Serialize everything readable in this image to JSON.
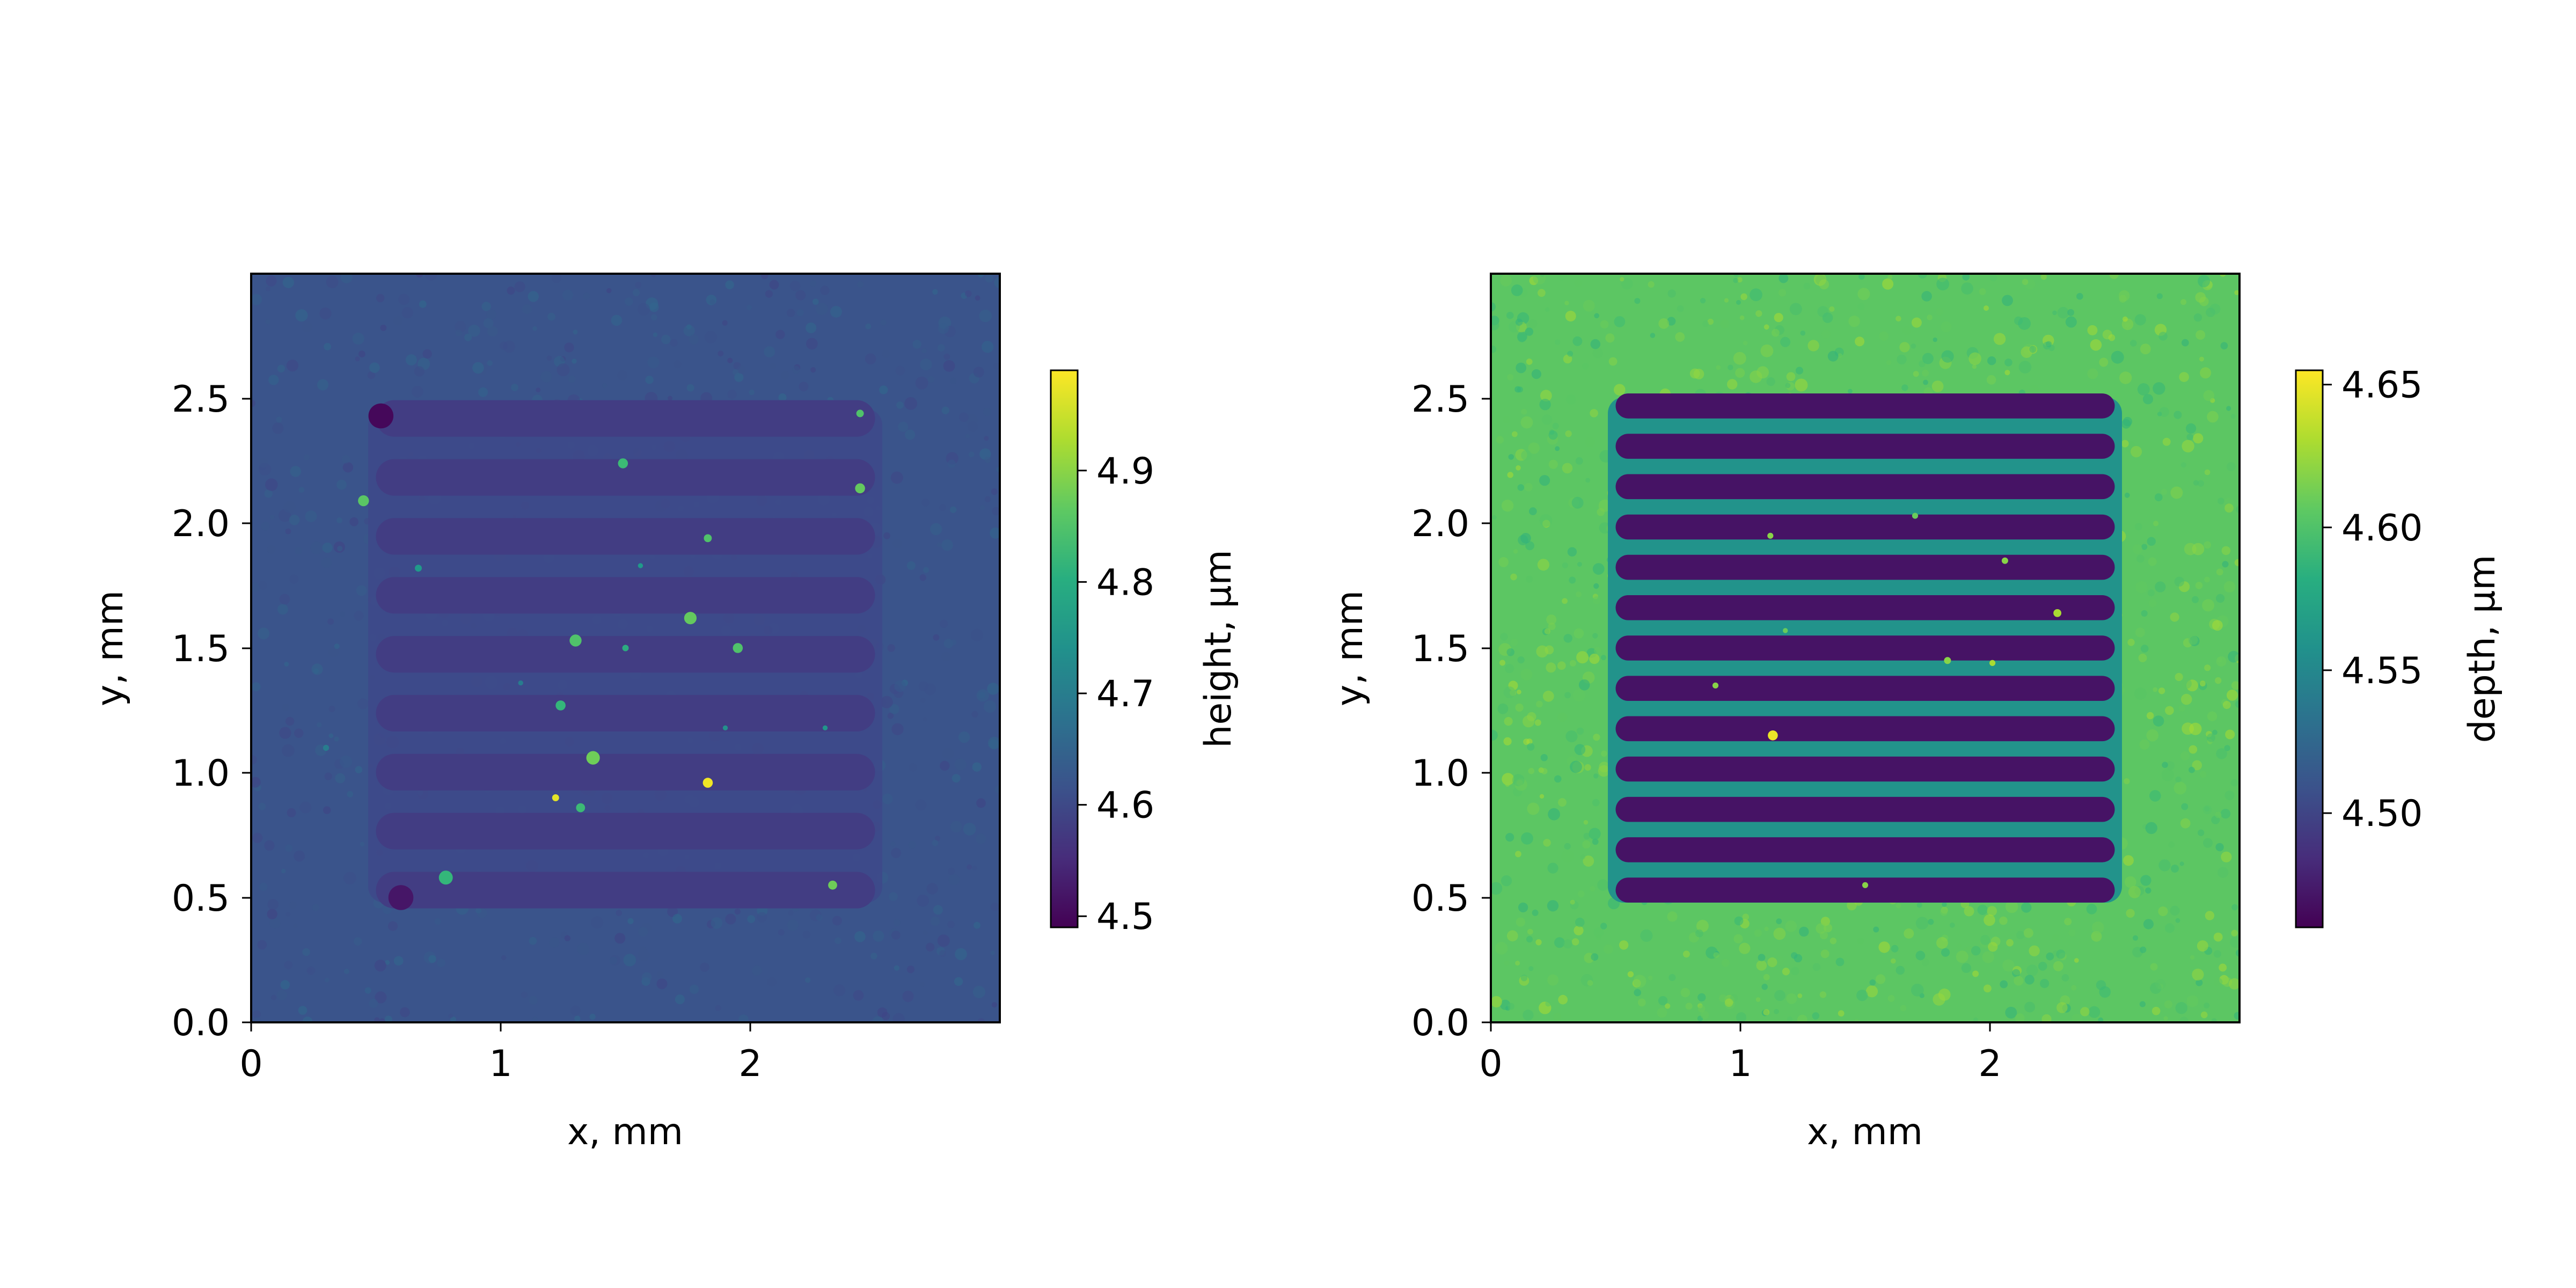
{
  "chart_data": [
    {
      "type": "heatmap",
      "title": "",
      "xlabel": "x, mm",
      "ylabel": "y, mm",
      "xlim": [
        0,
        3
      ],
      "ylim": [
        0,
        3
      ],
      "x_ticks": [
        0,
        1,
        2
      ],
      "x_tick_labels": [
        "0",
        "1",
        "2"
      ],
      "y_ticks": [
        0.0,
        0.5,
        1.0,
        1.5,
        2.0,
        2.5
      ],
      "y_tick_labels": [
        "0.0",
        "0.5",
        "1.0",
        "1.5",
        "2.0",
        "2.5"
      ],
      "colormap": "viridis",
      "colorbar": {
        "label": "height, µm",
        "range": [
          4.49,
          4.99
        ],
        "ticks": [
          4.5,
          4.6,
          4.7,
          4.8,
          4.9
        ],
        "tick_labels": [
          "4.5",
          "4.6",
          "4.7",
          "4.8",
          "4.9"
        ]
      },
      "surface": {
        "background_value": 4.62,
        "pattern_region": {
          "x": [
            0.47,
            2.53
          ],
          "y": [
            0.47,
            2.45
          ]
        },
        "stripe_count": 9,
        "stripe_value": 4.58,
        "groove_value": 4.6
      },
      "features": [
        {
          "x": 0.52,
          "y": 2.43,
          "r": 0.05,
          "value": 4.5
        },
        {
          "x": 0.6,
          "y": 0.5,
          "r": 0.05,
          "value": 4.52
        },
        {
          "x": 0.45,
          "y": 2.09,
          "r": 0.022,
          "value": 4.86
        },
        {
          "x": 0.67,
          "y": 1.82,
          "r": 0.014,
          "value": 4.76
        },
        {
          "x": 1.49,
          "y": 2.24,
          "r": 0.02,
          "value": 4.83
        },
        {
          "x": 1.83,
          "y": 1.94,
          "r": 0.016,
          "value": 4.85
        },
        {
          "x": 1.76,
          "y": 1.62,
          "r": 0.025,
          "value": 4.87
        },
        {
          "x": 1.95,
          "y": 1.5,
          "r": 0.02,
          "value": 4.85
        },
        {
          "x": 1.3,
          "y": 1.53,
          "r": 0.024,
          "value": 4.85
        },
        {
          "x": 1.5,
          "y": 1.5,
          "r": 0.013,
          "value": 4.8
        },
        {
          "x": 1.24,
          "y": 1.27,
          "r": 0.02,
          "value": 4.82
        },
        {
          "x": 1.37,
          "y": 1.06,
          "r": 0.027,
          "value": 4.88
        },
        {
          "x": 1.83,
          "y": 0.96,
          "r": 0.02,
          "value": 4.98
        },
        {
          "x": 1.22,
          "y": 0.9,
          "r": 0.014,
          "value": 4.97
        },
        {
          "x": 1.32,
          "y": 0.86,
          "r": 0.018,
          "value": 4.83
        },
        {
          "x": 0.78,
          "y": 0.58,
          "r": 0.028,
          "value": 4.82
        },
        {
          "x": 2.44,
          "y": 2.14,
          "r": 0.02,
          "value": 4.87
        },
        {
          "x": 2.44,
          "y": 2.44,
          "r": 0.015,
          "value": 4.85
        },
        {
          "x": 2.33,
          "y": 0.55,
          "r": 0.018,
          "value": 4.88
        },
        {
          "x": 0.3,
          "y": 1.1,
          "r": 0.012,
          "value": 4.7
        },
        {
          "x": 1.56,
          "y": 1.83,
          "r": 0.01,
          "value": 4.76
        },
        {
          "x": 1.9,
          "y": 1.18,
          "r": 0.01,
          "value": 4.74
        },
        {
          "x": 2.3,
          "y": 1.18,
          "r": 0.01,
          "value": 4.75
        },
        {
          "x": 1.08,
          "y": 1.36,
          "r": 0.01,
          "value": 4.7
        }
      ]
    },
    {
      "type": "heatmap",
      "title": "",
      "xlabel": "x, mm",
      "ylabel": "y, mm",
      "xlim": [
        0,
        3
      ],
      "ylim": [
        0,
        3
      ],
      "x_ticks": [
        0,
        1,
        2
      ],
      "x_tick_labels": [
        "0",
        "1",
        "2"
      ],
      "y_ticks": [
        0.0,
        0.5,
        1.0,
        1.5,
        2.0,
        2.5
      ],
      "y_tick_labels": [
        "0.0",
        "0.5",
        "1.0",
        "1.5",
        "2.0",
        "2.5"
      ],
      "colormap": "viridis",
      "colorbar": {
        "label": "depth, µm",
        "range": [
          4.46,
          4.655
        ],
        "ticks": [
          4.5,
          4.55,
          4.6,
          4.65
        ],
        "tick_labels": [
          "4.50",
          "4.55",
          "4.60",
          "4.65"
        ]
      },
      "surface": {
        "background_value": 4.605,
        "pattern_region": {
          "x": [
            0.47,
            2.53
          ],
          "y": [
            0.47,
            2.5
          ]
        },
        "stripe_count": 13,
        "stripe_value": 4.47,
        "groove_value": 4.56
      },
      "features": [
        {
          "x": 1.13,
          "y": 1.15,
          "r": 0.02,
          "value": 4.65
        },
        {
          "x": 1.83,
          "y": 1.45,
          "r": 0.014,
          "value": 4.62
        },
        {
          "x": 2.01,
          "y": 1.44,
          "r": 0.012,
          "value": 4.63
        },
        {
          "x": 2.06,
          "y": 1.85,
          "r": 0.013,
          "value": 4.62
        },
        {
          "x": 2.27,
          "y": 1.64,
          "r": 0.016,
          "value": 4.63
        },
        {
          "x": 1.12,
          "y": 1.95,
          "r": 0.012,
          "value": 4.62
        },
        {
          "x": 0.9,
          "y": 1.35,
          "r": 0.012,
          "value": 4.62
        },
        {
          "x": 1.18,
          "y": 1.57,
          "r": 0.01,
          "value": 4.61
        },
        {
          "x": 1.5,
          "y": 0.55,
          "r": 0.012,
          "value": 4.62
        },
        {
          "x": 1.7,
          "y": 2.03,
          "r": 0.012,
          "value": 4.61
        }
      ]
    }
  ]
}
